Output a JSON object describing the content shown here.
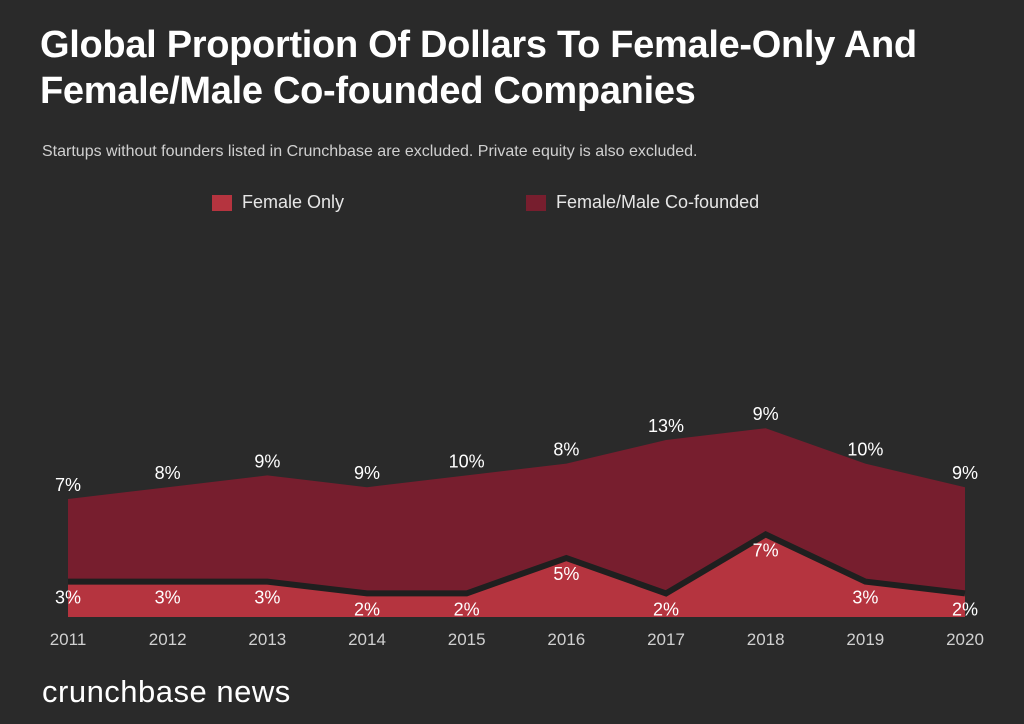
{
  "header": {
    "title": "Global Proportion Of Dollars To Female-Only And Female/Male Co-founded Companies",
    "subtitle": "Startups without founders listed in Crunchbase are excluded. Private equity is also excluded."
  },
  "footer": {
    "logo_text": "crunchbase news"
  },
  "colors": {
    "background": "#2a2a2a",
    "female_only": "#b5343f",
    "cofounded": "#771e2e",
    "boundary_line": "#1f1f1f",
    "text": "#ffffff",
    "axis_text": "#d0d0d0"
  },
  "chart_data": {
    "type": "area",
    "stacked": true,
    "title": "Global Proportion Of Dollars To Female-Only And Female/Male Co-founded Companies",
    "subtitle": "Startups without founders listed in Crunchbase are excluded. Private equity is also excluded.",
    "categories": [
      "2011",
      "2012",
      "2013",
      "2014",
      "2015",
      "2016",
      "2017",
      "2018",
      "2019",
      "2020"
    ],
    "series": [
      {
        "name": "Female Only",
        "color": "#b5343f",
        "values": [
          3,
          3,
          3,
          2,
          2,
          5,
          2,
          7,
          3,
          2
        ],
        "labels": [
          "3%",
          "3%",
          "3%",
          "2%",
          "2%",
          "5%",
          "2%",
          "7%",
          "3%",
          "2%"
        ]
      },
      {
        "name": "Female/Male Co-founded",
        "color": "#771e2e",
        "values": [
          7,
          8,
          9,
          9,
          10,
          8,
          13,
          9,
          10,
          9
        ],
        "labels": [
          "7%",
          "8%",
          "9%",
          "9%",
          "10%",
          "8%",
          "13%",
          "9%",
          "10%",
          "9%"
        ]
      }
    ],
    "grid": false,
    "legend": "top-center"
  }
}
